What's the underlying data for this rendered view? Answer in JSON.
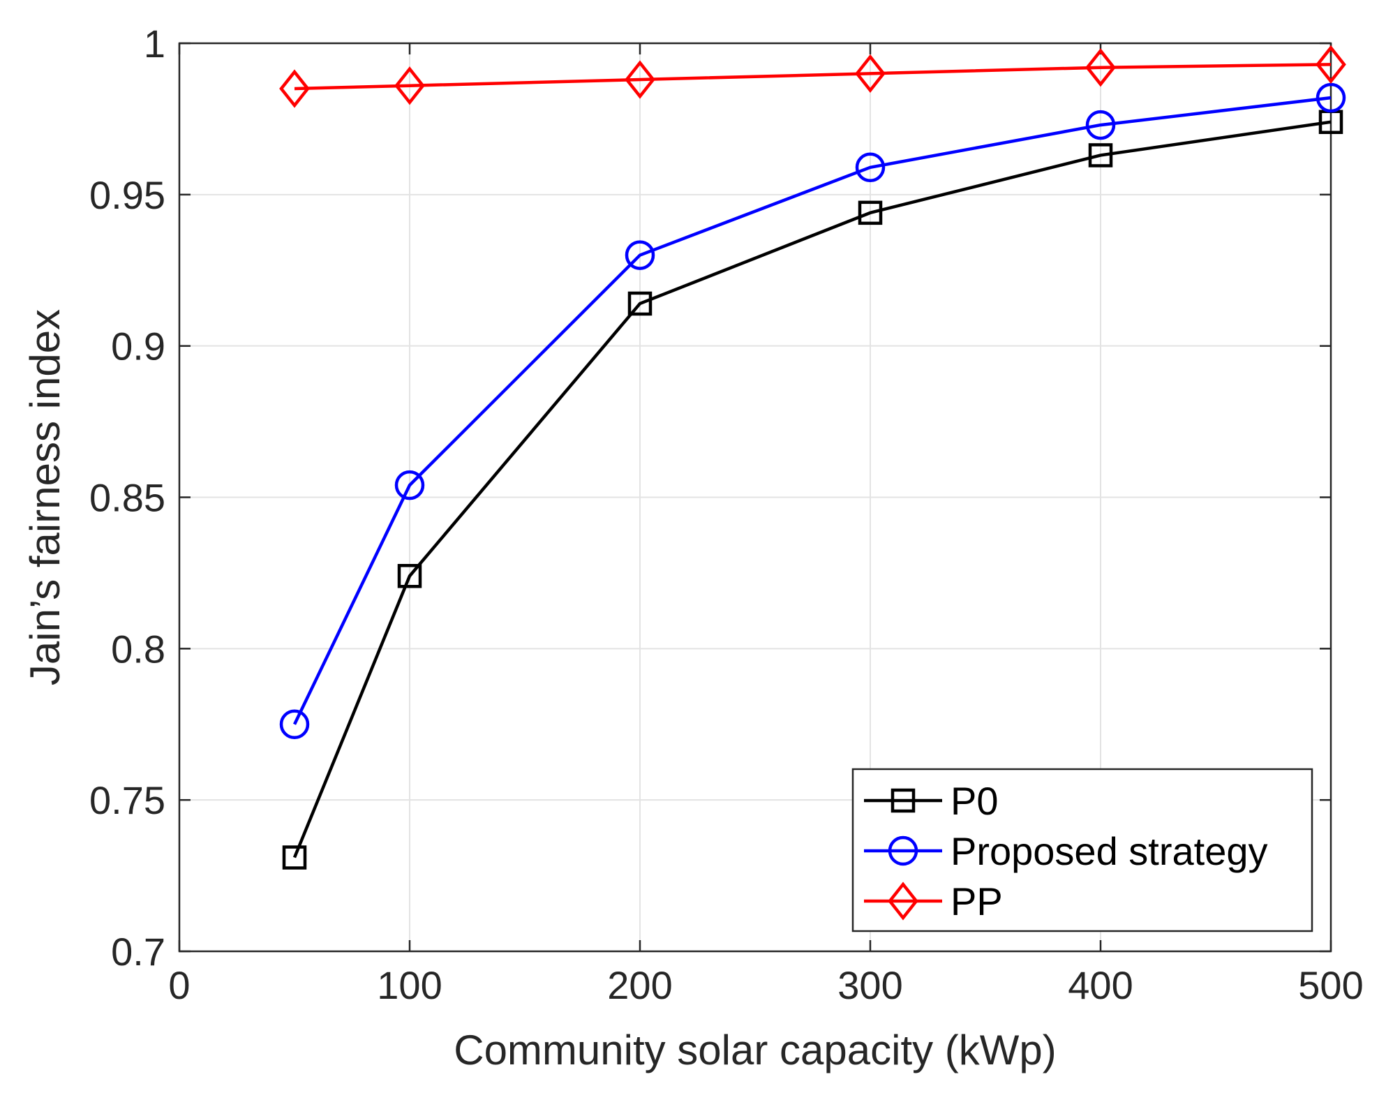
{
  "chart_data": {
    "type": "line",
    "title": "",
    "xlabel": "Community solar capacity (kWp)",
    "ylabel": "Jain’s fairness index",
    "xlim": [
      0,
      500
    ],
    "ylim": [
      0.7,
      1
    ],
    "xticks": [
      0,
      100,
      200,
      300,
      400,
      500
    ],
    "xtick_labels": [
      "0",
      "100",
      "200",
      "300",
      "400",
      "500"
    ],
    "yticks": [
      0.7,
      0.75,
      0.8,
      0.85,
      0.9,
      0.95,
      1
    ],
    "ytick_labels": [
      "0.7",
      "0.75",
      "0.8",
      "0.85",
      "0.9",
      "0.95",
      "1"
    ],
    "grid": true,
    "legend_position": "bottom-right",
    "x": [
      50,
      100,
      200,
      300,
      400,
      500
    ],
    "series": [
      {
        "name": "P0",
        "color": "#000000",
        "marker": "square",
        "values": [
          0.731,
          0.824,
          0.914,
          0.944,
          0.963,
          0.974
        ]
      },
      {
        "name": "Proposed strategy",
        "color": "#0000ff",
        "marker": "circle",
        "values": [
          0.775,
          0.854,
          0.93,
          0.959,
          0.973,
          0.982
        ]
      },
      {
        "name": "PP",
        "color": "#ff0000",
        "marker": "diamond",
        "values": [
          0.985,
          0.986,
          0.988,
          0.99,
          0.992,
          0.993
        ]
      }
    ]
  }
}
